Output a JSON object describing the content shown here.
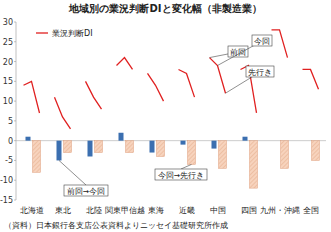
{
  "chart_data": {
    "type": "bar",
    "title": "地域別の業況判断DIと変化幅（非製造業）",
    "categories": [
      "北海道",
      "東北",
      "北陸",
      "関東甲信越",
      "東海",
      "近畿",
      "中国",
      "四国",
      "九州・沖縄",
      "全国"
    ],
    "series": [
      {
        "name": "業況判断DI",
        "type": "line",
        "color": "#e02020",
        "values": [
          [
            14,
            15,
            7
          ],
          [
            11,
            6,
            3
          ],
          [
            15,
            11,
            8
          ],
          [
            19,
            21,
            18
          ],
          [
            17,
            14,
            10
          ],
          [
            18,
            17,
            11
          ],
          [
            21,
            19,
            12
          ],
          [
            18,
            19,
            7
          ],
          [
            28,
            28,
            21
          ],
          [
            18,
            18,
            13
          ]
        ]
      },
      {
        "name": "前回→今回",
        "type": "bar",
        "color": "#3b6fb0",
        "values": [
          1,
          -5,
          -4,
          2,
          -3,
          -1,
          -2,
          1,
          0,
          0
        ]
      },
      {
        "name": "今回→先行き",
        "type": "bar",
        "color": "#f7d3bd",
        "values": [
          -8,
          -3,
          -3,
          -3,
          -4,
          -6,
          -7,
          -12,
          -7,
          -5
        ]
      }
    ],
    "annotations": [
      "前回",
      "今回",
      "先行き"
    ],
    "source": "（資料）日本銀行各支店公表資料よりニッセイ基礎研究所作成",
    "ylim": [
      -15,
      30
    ],
    "yticks": [
      -15,
      -10,
      -5,
      0,
      5,
      10,
      15,
      20,
      25,
      30
    ],
    "grid": false,
    "legend": "top-left"
  }
}
